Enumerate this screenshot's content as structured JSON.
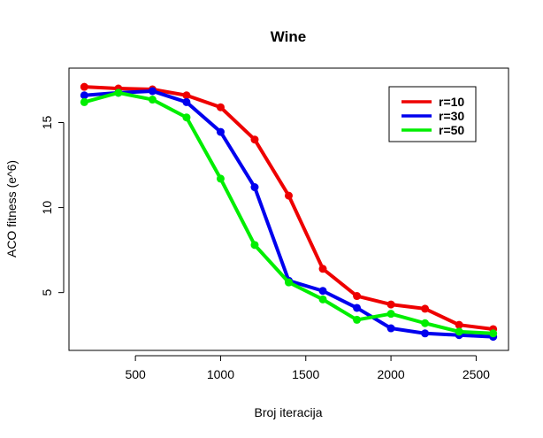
{
  "chart_data": {
    "type": "line",
    "title": "Wine",
    "xlabel": "Broj iteracija",
    "ylabel": "ACO fitness (e^6)",
    "xlim": [
      110,
      2690
    ],
    "ylim": [
      1.6,
      18.2
    ],
    "xticks": [
      500,
      1000,
      1500,
      2000,
      2500
    ],
    "yticks": [
      5,
      10,
      15
    ],
    "xtick_labels": [
      "500",
      "1000",
      "1500",
      "2000",
      "2500"
    ],
    "ytick_labels": [
      "5",
      "10",
      "15"
    ],
    "grid": false,
    "legend_position": "top-right",
    "x": [
      200,
      400,
      600,
      800,
      1000,
      1200,
      1400,
      1600,
      1800,
      2000,
      2200,
      2400,
      2600
    ],
    "series": [
      {
        "name": "r=10",
        "color": "#ee0000",
        "values": [
          17.1,
          17.0,
          16.95,
          16.6,
          15.9,
          14.0,
          10.7,
          6.4,
          4.8,
          4.3,
          4.05,
          3.1,
          2.85
        ]
      },
      {
        "name": "r=30",
        "color": "#0000ee",
        "values": [
          16.6,
          16.75,
          16.85,
          16.2,
          14.45,
          11.2,
          5.7,
          5.1,
          4.1,
          2.9,
          2.6,
          2.5,
          2.4
        ]
      },
      {
        "name": "r=50",
        "color": "#00ee00",
        "values": [
          16.2,
          16.75,
          16.35,
          15.3,
          11.7,
          7.8,
          5.6,
          4.6,
          3.4,
          3.75,
          3.2,
          2.7,
          2.6
        ]
      }
    ]
  }
}
